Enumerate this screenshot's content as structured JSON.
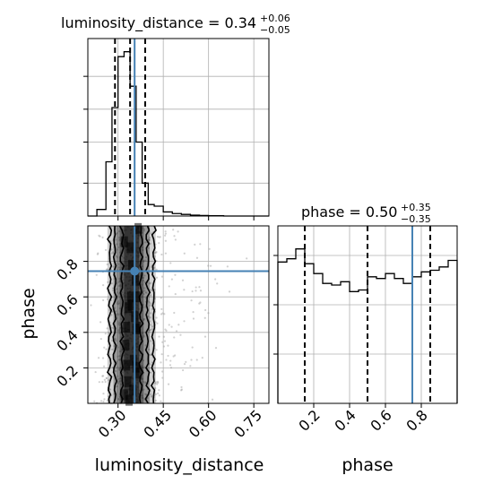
{
  "chart_data": [
    {
      "panel": "luminosity_distance-marginal",
      "type": "histogram",
      "title_param": "luminosity_distance",
      "title_value": "0.34",
      "title_upper": "+0.06",
      "title_lower": "−0.05",
      "xlim": [
        0.2,
        0.8
      ],
      "ylim": [
        0,
        1.0
      ],
      "bin_edges": [
        0.2,
        0.23,
        0.26,
        0.28,
        0.3,
        0.32,
        0.34,
        0.36,
        0.38,
        0.4,
        0.42,
        0.45,
        0.48,
        0.51,
        0.54,
        0.57,
        0.6,
        0.65,
        0.7,
        0.8
      ],
      "counts": [
        0.0,
        0.04,
        0.33,
        0.66,
        0.97,
        1.0,
        0.79,
        0.45,
        0.2,
        0.07,
        0.06,
        0.025,
        0.015,
        0.01,
        0.005,
        0.003,
        0.002,
        0.0,
        0.0
      ],
      "quantiles": [
        0.29,
        0.34,
        0.39
      ],
      "truth": 0.355,
      "xticks": [
        0.3,
        0.45,
        0.6,
        0.75
      ]
    },
    {
      "panel": "phase-marginal",
      "type": "histogram",
      "title_param": "phase",
      "title_value": "0.50",
      "title_upper": "+0.35",
      "title_lower": "−0.35",
      "xlim": [
        0.0,
        1.0
      ],
      "ylim": [
        0,
        1.0
      ],
      "bin_edges": [
        0.0,
        0.05,
        0.1,
        0.15,
        0.2,
        0.25,
        0.3,
        0.35,
        0.4,
        0.45,
        0.5,
        0.55,
        0.6,
        0.65,
        0.7,
        0.75,
        0.8,
        0.85,
        0.9,
        0.95,
        1.0
      ],
      "counts": [
        0.86,
        0.88,
        0.94,
        0.85,
        0.79,
        0.73,
        0.72,
        0.74,
        0.68,
        0.69,
        0.77,
        0.76,
        0.79,
        0.76,
        0.73,
        0.77,
        0.8,
        0.81,
        0.83,
        0.87
      ],
      "quantiles": [
        0.15,
        0.5,
        0.85
      ],
      "truth": 0.75,
      "xticks": [
        0.2,
        0.4,
        0.6,
        0.8
      ]
    },
    {
      "panel": "joint",
      "type": "scatter",
      "xlabel": "luminosity_distance",
      "ylabel": "phase",
      "xlim": [
        0.2,
        0.8
      ],
      "ylim": [
        0.0,
        1.0
      ],
      "truth": {
        "x": 0.355,
        "y": 0.745
      },
      "xticks": [
        0.3,
        0.45,
        0.6,
        0.75
      ],
      "yticks": [
        0.2,
        0.4,
        0.6,
        0.8
      ],
      "tick_labels_x": [
        "0.30",
        "0.45",
        "0.60",
        "0.75"
      ],
      "tick_labels_y": [
        "0.2",
        "0.4",
        "0.6",
        "0.8"
      ],
      "tick_labels_phase_x": [
        "0.2",
        "0.4",
        "0.6",
        "0.8"
      ]
    }
  ],
  "colors": {
    "truth": "#4682b4",
    "hist": "#000000",
    "grid": "#b0b0b0",
    "points": "#9a9a9a"
  }
}
